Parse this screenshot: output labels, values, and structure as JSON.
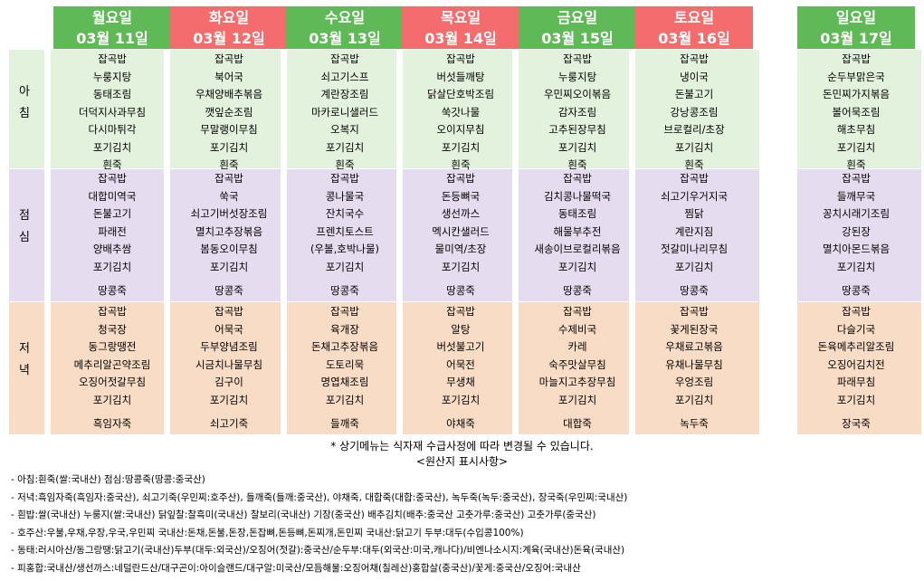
{
  "days": [
    {
      "name": "월요일",
      "date": "03월 11일",
      "color": "#5fb957"
    },
    {
      "name": "화요일",
      "date": "03월 12일",
      "color": "#f46c6c"
    },
    {
      "name": "수요일",
      "date": "03월 13일",
      "color": "#5fb957"
    },
    {
      "name": "목요일",
      "date": "03월 14일",
      "color": "#f46c6c"
    },
    {
      "name": "금요일",
      "date": "03월 15일",
      "color": "#5fb957"
    },
    {
      "name": "토요일",
      "date": "03월 16일",
      "color": "#f46c6c"
    },
    {
      "name": "일요일",
      "date": "03월 17일",
      "color": "#5fb957"
    }
  ],
  "meal_labels": {
    "breakfast": [
      "아",
      "침"
    ],
    "lunch": [
      "점",
      "심"
    ],
    "dinner": [
      "저",
      "녁"
    ]
  },
  "band_colors": {
    "breakfast": "#e3f2dd",
    "lunch": "#e6dcef",
    "dinner": "#f9dcc5"
  },
  "breakfast": [
    [
      "잡곡밥",
      "누룽지탕",
      "동태조림",
      "더덕지사과무침",
      "다시마튀각",
      "포기김치",
      "흰죽"
    ],
    [
      "잡곡밥",
      "북어국",
      "우채양배추볶음",
      "깻잎순조림",
      "무말랭이무침",
      "포기김치",
      "흰죽"
    ],
    [
      "잡곡밥",
      "쇠고기스프",
      "계란장조림",
      "마카로니샐러드",
      "오복지",
      "포기김치",
      "흰죽"
    ],
    [
      "잡곡밥",
      "버섯들깨탕",
      "닭살단호박조림",
      "쑥갓나물",
      "오이지무침",
      "포기김치",
      "흰죽"
    ],
    [
      "잡곡밥",
      "누룽지탕",
      "우민찌오이볶음",
      "감자조림",
      "고추된장무침",
      "포기김치",
      "흰죽"
    ],
    [
      "잡곡밥",
      "냉이국",
      "돈불고기",
      "강낭콩조림",
      "브로컬리/초장",
      "포기김치",
      "흰죽"
    ],
    [
      "잡곡밥",
      "순두부맑은국",
      "돈민찌가지볶음",
      "볼어묵조림",
      "해초무침",
      "포기김치",
      "흰죽"
    ]
  ],
  "lunch": [
    [
      "잡곡밥",
      "대합미역국",
      "돈불고기",
      "파래전",
      "양배추쌈",
      "포기김치",
      "땅콩죽"
    ],
    [
      "잡곡밥",
      "쑥국",
      "쇠고기버섯장조림",
      "멸치고추장볶음",
      "봄동오이무침",
      "포기김치",
      "땅콩죽"
    ],
    [
      "잡곡밥",
      "콩나물국",
      "잔치국수",
      "프렌치토스트",
      "(우볼,호박나물)",
      "포기김치",
      "땅콩죽"
    ],
    [
      "잡곡밥",
      "돈등뼈국",
      "생선까스",
      "멕시칸샐러드",
      "물미역/초장",
      "포기김치",
      "땅콩죽"
    ],
    [
      "잡곡밥",
      "김치콩나물떡국",
      "동태조림",
      "해물부추전",
      "새송이브로컬리볶음",
      "포기김치",
      "땅콩죽"
    ],
    [
      "잡곡밥",
      "쇠고기우거지국",
      "찜닭",
      "계란지짐",
      "젓갈미나리무침",
      "포기김치",
      "땅콩죽"
    ],
    [
      "잡곡밥",
      "들깨무국",
      "꽁치시래기조림",
      "강된장",
      "멸치아몬드볶음",
      "포기김치",
      "땅콩죽"
    ]
  ],
  "dinner": [
    [
      "잡곡밥",
      "청국장",
      "동그랑땡전",
      "메추리알곤약조림",
      "오징어젓갈무침",
      "포기김치",
      "흑임자죽"
    ],
    [
      "잡곡밥",
      "어묵국",
      "두부양념조림",
      "시금치나물무침",
      "김구이",
      "포기김치",
      "쇠고기죽"
    ],
    [
      "잡곡밥",
      "육개장",
      "돈채고추장볶음",
      "도토리묵",
      "명엽채조림",
      "포기김치",
      "들깨죽"
    ],
    [
      "잡곡밥",
      "알탕",
      "버섯불고기",
      "어묵전",
      "무생채",
      "포기김치",
      "야채죽"
    ],
    [
      "잡곡밥",
      "수제비국",
      "카레",
      "숙주맛살무침",
      "마늘지고추장무침",
      "포기김치",
      "대합죽"
    ],
    [
      "잡곡밥",
      "꽃게된장국",
      "우채료고볶음",
      "유채나물무침",
      "우엉조림",
      "포기김치",
      "녹두죽"
    ],
    [
      "잡곡밥",
      "다슬기국",
      "돈육메추리알조림",
      "오징어김치전",
      "파래무침",
      "포기김치",
      "장국죽"
    ]
  ],
  "notice": "* 상기메뉴는 식자재 수급사정에 따라 변경될 수 있습니다.",
  "origin_title": "<원산지 표시사항>",
  "footnotes": [
    "- 아침:흰죽(쌀:국내산) 점심:땅콩죽(땅콩:중국산)",
    "- 저녁:흑임자죽(흑임자:중국산), 쇠고기죽(우민찌:호주산), 들깨죽(들깨:중국산), 야채죽, 대합죽(대합:중국산), 녹두죽(녹두:중국산), 장국죽(우민찌:국내산)",
    "- 흰밥:쌀(국내산) 누룽지(쌀:국내산) 닭잎찰:찰흑미(국내산) 찰보리(국내산) 기장(중국산) 배추김치(배추:중국산 고춧가루:중국산) 고춧가루(중국산)",
    "- 호주산:우불,우채,우장,우국,우민찌  국내산:돈채,돈불,돈장,돈잡뼈,돈등뼈,돈찌개,돈민찌  국내산:닭고기  두부:대두(수입콩100%)",
    "- 동태:러시아산/동그랑땡:닭고기(국내산)두부(대두:외국산)/오징어(젓갈):중국산/순두부:대두(외국산:미국,캐나다)/비엔나소시지:계육(국내산)돈육(국내산)",
    "- 피홍합:국내산/생선까스:네덜란드산/대구곤이:아이슬랜드/대구알:미국산/모듬해물:오징어채(칠레산)홍합살(중국산)/꽃게:중국산/오징어:국내산"
  ]
}
